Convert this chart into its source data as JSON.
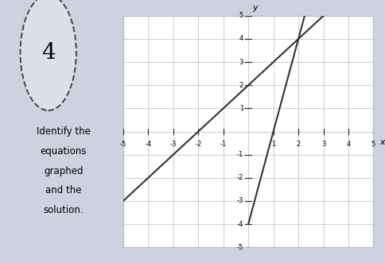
{
  "xlim": [
    -5,
    5
  ],
  "ylim": [
    -5,
    5
  ],
  "xticks": [
    -5,
    -4,
    -3,
    -2,
    -1,
    1,
    2,
    3,
    4,
    5
  ],
  "yticks": [
    -5,
    -4,
    -3,
    -2,
    -1,
    1,
    2,
    3,
    4,
    5
  ],
  "xlabel": "x",
  "ylabel": "y",
  "line1_slope": 1,
  "line1_intercept": 2,
  "line2_slope": 4,
  "line2_intercept": -4,
  "line_color": "#333333",
  "grid_color": "#bbbbbb",
  "axis_color": "#333333",
  "background_color": "#cdd2de",
  "plot_bg_color": "#e8eaf0",
  "label_number": "4",
  "side_text": [
    "Identify the",
    "equations",
    "graphed",
    "and the",
    "solution."
  ]
}
